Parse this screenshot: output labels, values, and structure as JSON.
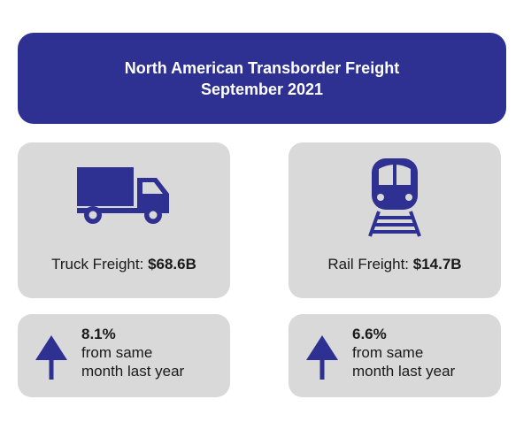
{
  "header": {
    "title_line1": "North American Transborder Freight",
    "title_line2": "September 2021"
  },
  "truck": {
    "icon": "truck-icon",
    "label": "Truck Freight:",
    "value": "$68.6B",
    "change_pct": "8.1%",
    "change_line1": "from same",
    "change_line2": "month last year"
  },
  "rail": {
    "icon": "train-icon",
    "label": "Rail Freight:",
    "value": "$14.7B",
    "change_pct": "6.6%",
    "change_line1": "from same",
    "change_line2": "month last year"
  },
  "colors": {
    "accent": "#2e3192",
    "card": "#d9d9d9"
  }
}
